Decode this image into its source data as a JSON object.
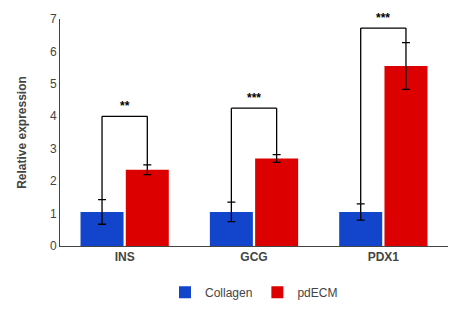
{
  "chart_data": {
    "type": "bar",
    "categories": [
      "INS",
      "GCG",
      "PDX1"
    ],
    "series": [
      {
        "name": "Collagen",
        "color": "#1244cc",
        "values": [
          1.05,
          1.05,
          1.05
        ],
        "errors": [
          0.38,
          0.3,
          0.25
        ]
      },
      {
        "name": "pdECM",
        "color": "#dd0000",
        "values": [
          2.35,
          2.7,
          5.55
        ],
        "errors": [
          0.15,
          0.12,
          0.72
        ]
      }
    ],
    "ylabel": "Relative expression",
    "ylim": [
      0,
      7
    ],
    "yticks": [
      0,
      1,
      2,
      3,
      4,
      5,
      6,
      7
    ],
    "brackets": [
      {
        "category": "INS",
        "label": "**",
        "y": 4.0
      },
      {
        "category": "GCG",
        "label": "***",
        "y": 4.25
      },
      {
        "category": "PDX1",
        "label": "***",
        "y": 6.72
      }
    ],
    "grid": false,
    "legend": "bottom"
  }
}
